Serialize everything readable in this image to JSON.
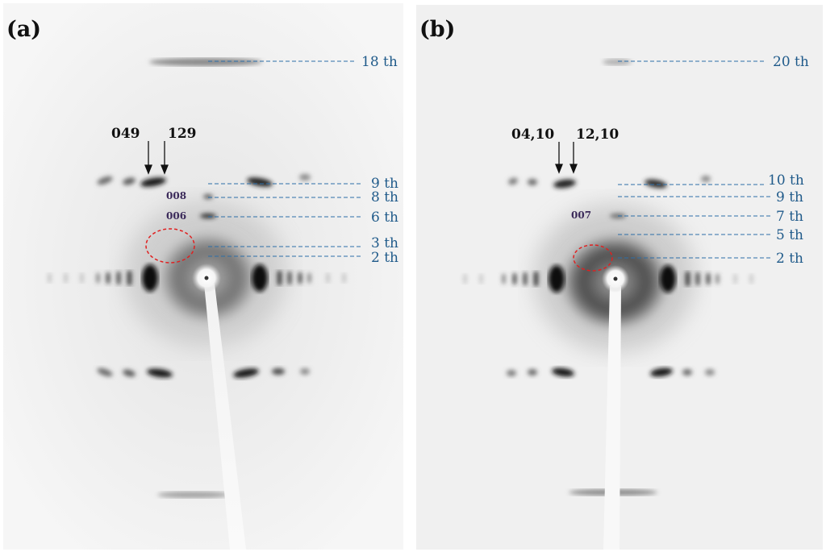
{
  "panels": [
    {
      "label": "(a)",
      "miller_labels": [
        "049",
        "129"
      ],
      "reflection_labels": [
        "008",
        "006"
      ],
      "layer_lines": [
        "18 th",
        "9 th",
        "8 th",
        "6 th",
        "3 th",
        "2 th"
      ]
    },
    {
      "label": "(b)",
      "miller_labels": [
        "04,10",
        "12,10"
      ],
      "reflection_labels": [
        "007"
      ],
      "layer_lines": [
        "20 th",
        "10 th",
        "9 th",
        "7 th",
        "5 th",
        "2 th"
      ]
    }
  ],
  "colors": {
    "leader_line": "#2c6ea8",
    "order_text": "#1f5a8a",
    "highlight_circle": "#e02020",
    "reflection_text": "#3b2a5a"
  }
}
